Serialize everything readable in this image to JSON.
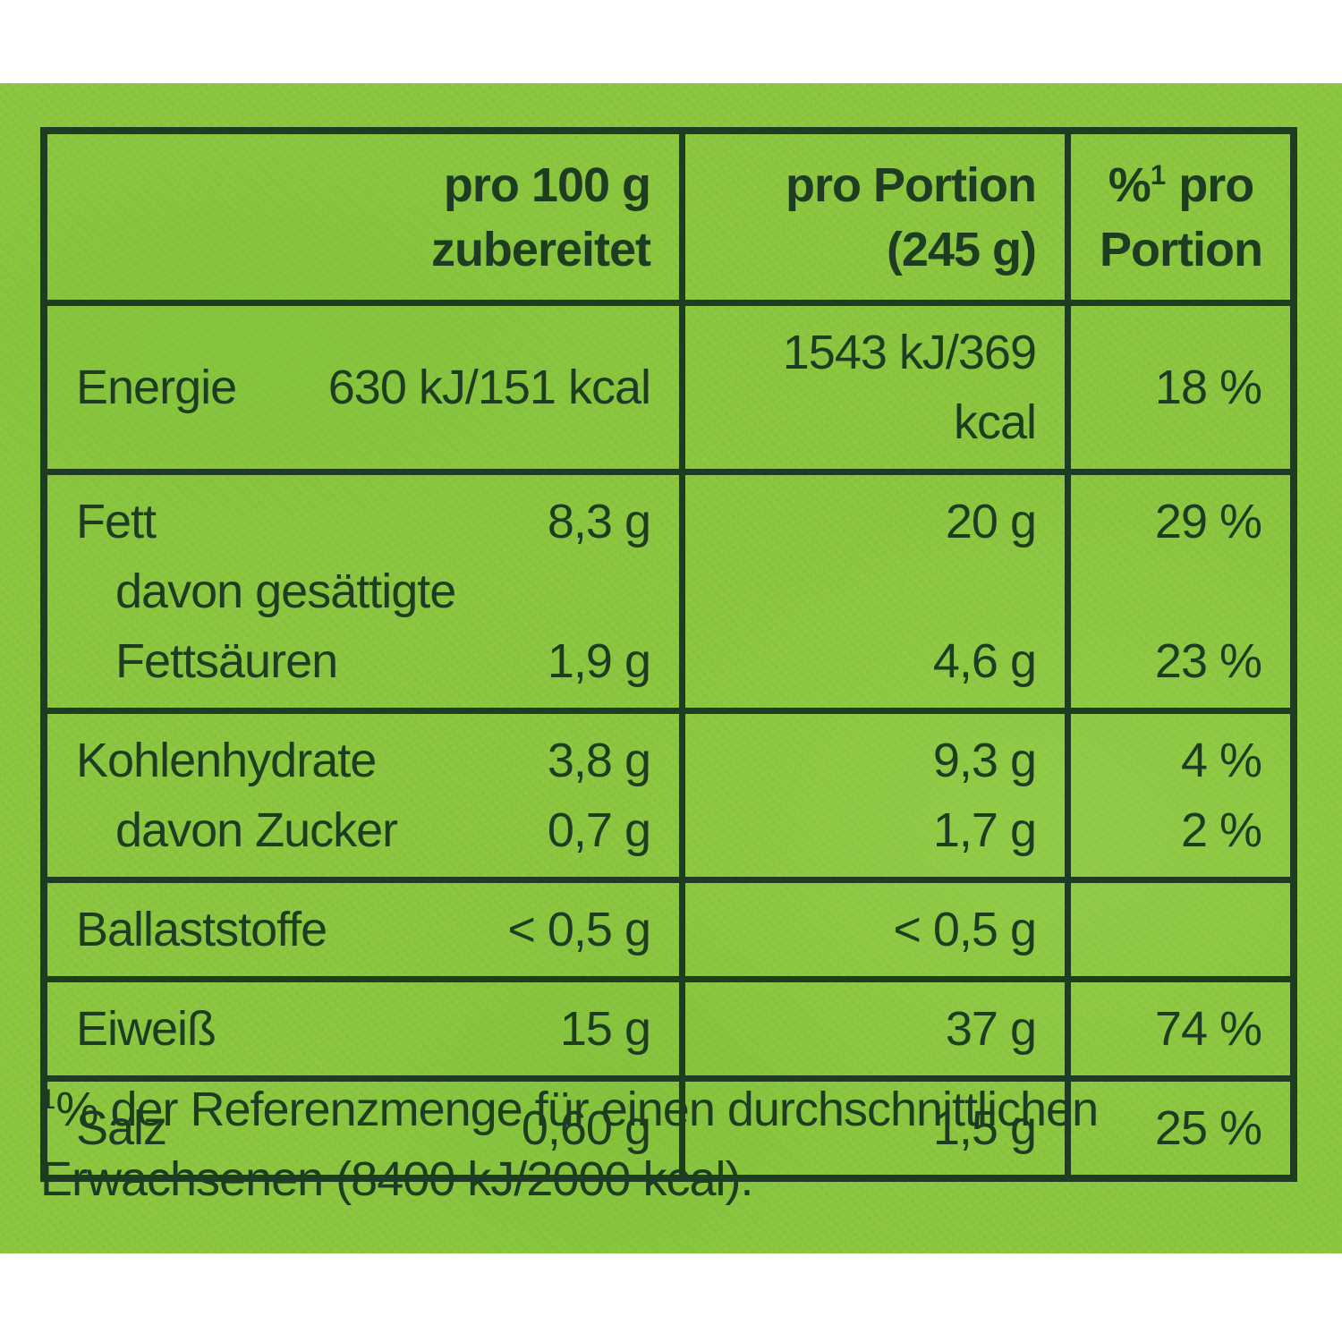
{
  "colors": {
    "background_white": "#ffffff",
    "panel_green": "#8dc63f",
    "ink_green": "#1d3c22"
  },
  "table": {
    "header": {
      "col_label": "",
      "col_per100": {
        "line1": "pro 100 g",
        "line2": "zubereitet"
      },
      "col_portion": {
        "line1": "pro Portion",
        "line2": "(245 g)"
      },
      "col_pct": {
        "pre": "%",
        "sup": "1",
        "post": " pro",
        "line2": "Portion"
      }
    },
    "rows": [
      {
        "label": "Energie",
        "per100": "630 kJ/151 kcal",
        "portion": "1543 kJ/369 kcal",
        "pct": "18 %"
      },
      {
        "label": "Fett",
        "per100": "8,3 g",
        "portion": "20 g",
        "pct": "29 %",
        "sub": {
          "label_line1": "davon gesättigte",
          "label_line2": "Fettsäuren",
          "per100": "1,9 g",
          "portion": "4,6 g",
          "pct": "23 %"
        }
      },
      {
        "label": "Kohlenhydrate",
        "per100": "3,8 g",
        "portion": "9,3 g",
        "pct": "4 %",
        "sub": {
          "label": "davon Zucker",
          "per100": "0,7 g",
          "portion": "1,7 g",
          "pct": "2 %"
        }
      },
      {
        "label": "Ballaststoffe",
        "per100": "< 0,5 g",
        "portion": "< 0,5 g",
        "pct": ""
      },
      {
        "label": "Eiweiß",
        "per100": "15 g",
        "portion": "37 g",
        "pct": "74 %"
      },
      {
        "label": "Salz",
        "per100": "0,60 g",
        "portion": "1,5 g",
        "pct": "25 %"
      }
    ]
  },
  "footnote": {
    "sup": "1",
    "line1": "% der Referenzmenge für einen durchschnittlichen",
    "line2": "Erwachsenen (8400 kJ/2000 kcal)."
  }
}
